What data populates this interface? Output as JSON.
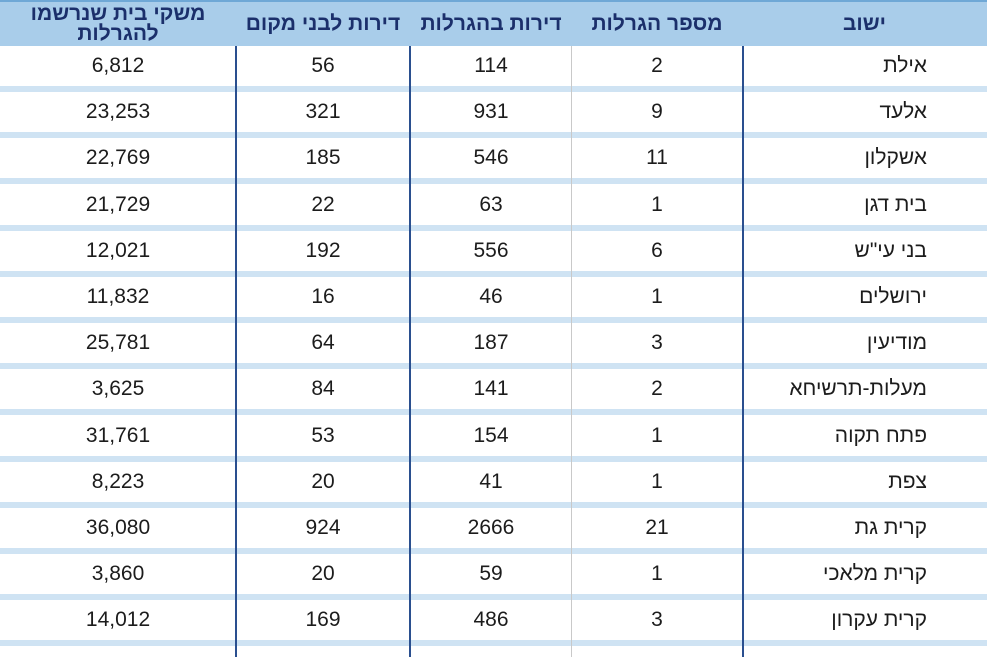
{
  "table": {
    "headers": {
      "city": "ישוב",
      "lotteries": "מספר הגרלות",
      "apartments": "דירות בהגרלות",
      "locals": "דירות לבני מקום",
      "households_line1": "משקי בית שנרשמו",
      "households_line2": "להגרלות"
    },
    "rows": [
      {
        "city": "אילת",
        "lotteries": "2",
        "apartments": "114",
        "locals": "56",
        "households": "6,812"
      },
      {
        "city": "אלעד",
        "lotteries": "9",
        "apartments": "931",
        "locals": "321",
        "households": "23,253"
      },
      {
        "city": "אשקלון",
        "lotteries": "11",
        "apartments": "546",
        "locals": "185",
        "households": "22,769"
      },
      {
        "city": "בית דגן",
        "lotteries": "1",
        "apartments": "63",
        "locals": "22",
        "households": "21,729"
      },
      {
        "city": "בני עי\"ש",
        "lotteries": "6",
        "apartments": "556",
        "locals": "192",
        "households": "12,021"
      },
      {
        "city": "ירושלים",
        "lotteries": "1",
        "apartments": "46",
        "locals": "16",
        "households": "11,832"
      },
      {
        "city": "מודיעין",
        "lotteries": "3",
        "apartments": "187",
        "locals": "64",
        "households": "25,781"
      },
      {
        "city": "מעלות-תרשיחא",
        "lotteries": "2",
        "apartments": "141",
        "locals": "84",
        "households": "3,625"
      },
      {
        "city": "פתח תקוה",
        "lotteries": "1",
        "apartments": "154",
        "locals": "53",
        "households": "31,761"
      },
      {
        "city": "צפת",
        "lotteries": "1",
        "apartments": "41",
        "locals": "20",
        "households": "8,223"
      },
      {
        "city": "קרית גת",
        "lotteries": "21",
        "apartments": "2666",
        "locals": "924",
        "households": "36,080"
      },
      {
        "city": "קרית מלאכי",
        "lotteries": "1",
        "apartments": "59",
        "locals": "20",
        "households": "3,860"
      },
      {
        "city": "קרית עקרון",
        "lotteries": "3",
        "apartments": "486",
        "locals": "169",
        "households": "14,012"
      }
    ],
    "colors": {
      "header_bg": "#a9cdea",
      "header_text": "#1b2f6b",
      "row_band": "#cfe3f3",
      "divider": "#2a4f8f"
    }
  }
}
